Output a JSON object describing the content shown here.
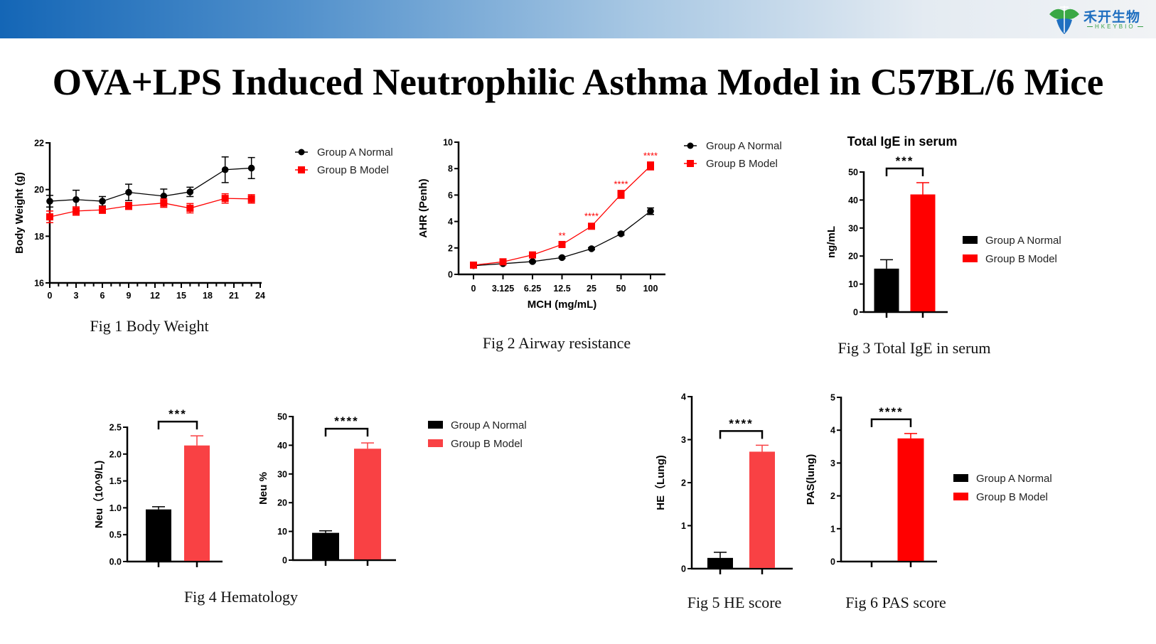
{
  "header": {
    "logo_cn": "禾开生物",
    "logo_en": "HKEYBIO"
  },
  "title": "OVA+LPS Induced Neutrophilic Asthma Model in C57BL/6 Mice",
  "colors": {
    "group_a": "#000000",
    "group_b": "#ff0000",
    "group_b_light": "#f94144"
  },
  "chart_data": [
    {
      "id": "fig1",
      "type": "line",
      "caption": "Fig 1 Body Weight",
      "ylabel": "Body Weight (g)",
      "xlabel": "",
      "xlim": [
        0,
        24
      ],
      "ylim": [
        16,
        22
      ],
      "xticks": [
        "0",
        "3",
        "6",
        "9",
        "12",
        "15",
        "18",
        "21",
        "24"
      ],
      "yticks": [
        "16",
        "18",
        "20",
        "22"
      ],
      "x": [
        0,
        3,
        6,
        9,
        13,
        16,
        20,
        23
      ],
      "series": [
        {
          "name": "Group A Normal",
          "color": "#000000",
          "marker": "circle",
          "values": [
            19.5,
            19.57,
            19.5,
            19.88,
            19.72,
            19.9,
            20.85,
            20.92
          ],
          "errors": [
            0.25,
            0.4,
            0.2,
            0.35,
            0.3,
            0.2,
            0.55,
            0.45
          ]
        },
        {
          "name": "Group B Model",
          "color": "#ff0000",
          "marker": "square",
          "values": [
            18.83,
            19.08,
            19.13,
            19.3,
            19.42,
            19.2,
            19.62,
            19.6
          ],
          "errors": [
            0.25,
            0.18,
            0.15,
            0.15,
            0.18,
            0.2,
            0.2,
            0.18
          ]
        }
      ],
      "legend": "right"
    },
    {
      "id": "fig2",
      "type": "line",
      "caption": "Fig 2 Airway resistance",
      "ylabel": "AHR (Penh)",
      "xlabel": "MCH (mg/mL)",
      "ylim": [
        0,
        10
      ],
      "categories": [
        "0",
        "3.125",
        "6.25",
        "12.5",
        "25",
        "50",
        "100"
      ],
      "yticks": [
        "0",
        "2",
        "4",
        "6",
        "8",
        "10"
      ],
      "series": [
        {
          "name": "Group A Normal",
          "color": "#000000",
          "marker": "circle",
          "values": [
            0.66,
            0.81,
            0.97,
            1.27,
            1.94,
            3.07,
            4.78
          ],
          "errors": [
            0.05,
            0.05,
            0.05,
            0.06,
            0.08,
            0.1,
            0.25
          ]
        },
        {
          "name": "Group B Model",
          "color": "#ff0000",
          "marker": "square",
          "values": [
            0.7,
            0.95,
            1.47,
            2.26,
            3.64,
            6.05,
            8.2
          ],
          "errors": [
            0.05,
            0.08,
            0.1,
            0.12,
            0.15,
            0.3,
            0.3
          ]
        }
      ],
      "annotations": [
        "",
        "",
        "",
        "**",
        "****",
        "****",
        "****"
      ],
      "legend": "right"
    },
    {
      "id": "fig3",
      "type": "bar",
      "caption": "Fig 3 Total IgE in serum",
      "title": "Total IgE in serum",
      "ylabel": "ng/mL",
      "ylim": [
        0,
        50
      ],
      "yticks": [
        "0",
        "10",
        "20",
        "30",
        "40",
        "50"
      ],
      "series": [
        {
          "name": "Group A Normal",
          "color": "#000000",
          "value": 15.5,
          "error": 3.2
        },
        {
          "name": "Group B Model",
          "color": "#ff0000",
          "value": 42,
          "error": 4.2
        }
      ],
      "significance": "***",
      "legend": "right"
    },
    {
      "id": "fig4a",
      "type": "bar",
      "caption": "Fig 4 Hematology",
      "ylabel": "Neu（10^9/L)",
      "ylim": [
        0,
        2.5
      ],
      "yticks": [
        "0.0",
        "0.5",
        "1.0",
        "1.5",
        "2.0",
        "2.5"
      ],
      "series": [
        {
          "name": "Group A Normal",
          "color": "#000000",
          "value": 0.97,
          "error": 0.05
        },
        {
          "name": "Group B Model",
          "color": "#f94144",
          "value": 2.16,
          "error": 0.18
        }
      ],
      "significance": "***"
    },
    {
      "id": "fig4b",
      "type": "bar",
      "ylabel": "Neu %",
      "ylim": [
        0,
        50
      ],
      "yticks": [
        "0",
        "10",
        "20",
        "30",
        "40",
        "50"
      ],
      "series": [
        {
          "name": "Group A Normal",
          "color": "#000000",
          "value": 9.5,
          "error": 0.7
        },
        {
          "name": "Group B Model",
          "color": "#f94144",
          "value": 38.8,
          "error": 2
        }
      ],
      "significance": "****",
      "legend": "right"
    },
    {
      "id": "fig5",
      "type": "bar",
      "caption": "Fig 5  HE score",
      "ylabel": "HE（Lung)",
      "ylim": [
        0,
        4
      ],
      "yticks": [
        "0",
        "1",
        "2",
        "3",
        "4"
      ],
      "series": [
        {
          "name": "Group A Normal",
          "color": "#000000",
          "value": 0.25,
          "error": 0.13
        },
        {
          "name": "Group B Model",
          "color": "#f94144",
          "value": 2.72,
          "error": 0.15
        }
      ],
      "significance": "****"
    },
    {
      "id": "fig6",
      "type": "bar",
      "caption": "Fig 6  PAS score",
      "ylabel": "PAS(lung)",
      "ylim": [
        0,
        5
      ],
      "yticks": [
        "0",
        "1",
        "2",
        "3",
        "4",
        "5"
      ],
      "series": [
        {
          "name": "Group A Normal",
          "color": "#000000",
          "value": 0,
          "error": 0
        },
        {
          "name": "Group B Model",
          "color": "#ff0000",
          "value": 3.75,
          "error": 0.15
        }
      ],
      "significance": "****",
      "legend": "right"
    }
  ]
}
